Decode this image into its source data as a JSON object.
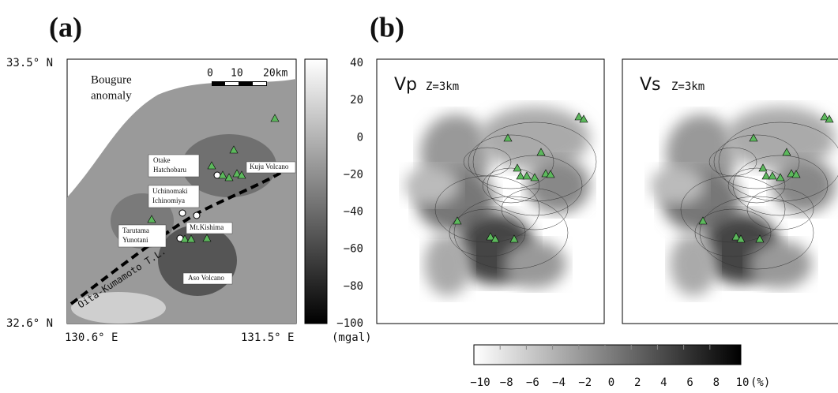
{
  "panel_a": {
    "label": "(a)",
    "lat_labels": [
      "33.5° N",
      "32.6° N"
    ],
    "lon_labels": [
      "130.6° E",
      "131.5° E"
    ],
    "map_title": [
      "Bougure",
      "anomaly"
    ],
    "scale_bar": [
      "0",
      "10",
      "20km"
    ],
    "places": {
      "otake": [
        "Otake",
        "Hatchobaru"
      ],
      "uchinomaki": [
        "Uchinomaki",
        "Ichinomiya"
      ],
      "tarutama": [
        "Tarutama",
        "Yunotani"
      ],
      "kuju": "Kuju Volcano",
      "kishima": "Mt.Kishima",
      "aso": "Aso Volcano"
    },
    "fault": "Oita-Kumamoto T.L.",
    "colorbar": {
      "ticks": [
        "40",
        "20",
        "0",
        "−20",
        "−40",
        "−60",
        "−80",
        "−100"
      ],
      "unit": "(mgal)"
    }
  },
  "panel_b": {
    "label": "(b)",
    "maps": [
      {
        "param": "Vp",
        "depth": "Z=3km"
      },
      {
        "param": "Vs",
        "depth": "Z=3km"
      }
    ],
    "colorbar": {
      "ticks": [
        "−10",
        "−8",
        "−6",
        "−4",
        "−2",
        "0",
        "2",
        "4",
        "6",
        "8",
        "10"
      ],
      "unit": "(%)"
    }
  }
}
